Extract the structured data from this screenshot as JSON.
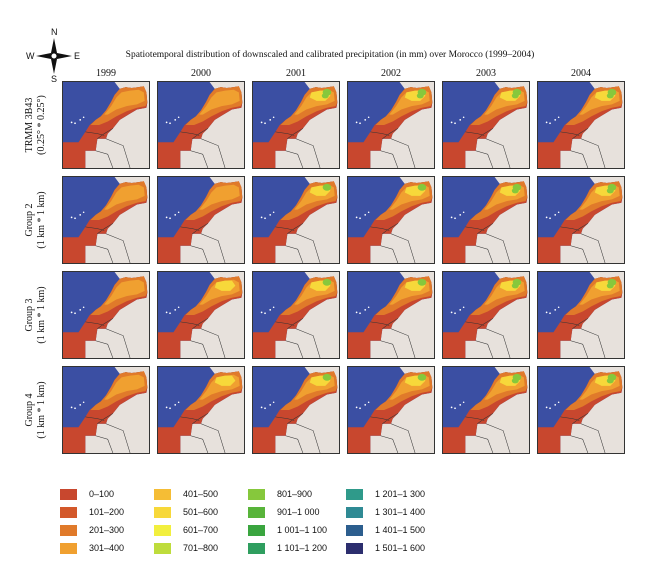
{
  "title": "Spatiotemporal distribution of downscaled and calibrated precipitation (in mm) over Morocco (1999–2004)",
  "compass": {
    "n": "N",
    "s": "S",
    "e": "E",
    "w": "W"
  },
  "years": [
    "1999",
    "2000",
    "2001",
    "2002",
    "2003",
    "2004"
  ],
  "rows": [
    {
      "line1": "TRMM 3B43",
      "line2": "(0.25° * 0.25°)"
    },
    {
      "line1": "Group 2",
      "line2": "(1 km * 1 km)"
    },
    {
      "line1": "Group 3",
      "line2": "(1 km * 1 km)"
    },
    {
      "line1": "Group 4",
      "line2": "(1 km * 1 km)"
    }
  ],
  "legend": [
    {
      "label": "0–100",
      "color": "#c8472e"
    },
    {
      "label": "101–200",
      "color": "#d3582a"
    },
    {
      "label": "201–300",
      "color": "#e07a2a"
    },
    {
      "label": "301–400",
      "color": "#f0a030"
    },
    {
      "label": "401–500",
      "color": "#f5bd35"
    },
    {
      "label": "501–600",
      "color": "#f7d83a"
    },
    {
      "label": "601–700",
      "color": "#f2ef3e"
    },
    {
      "label": "701–800",
      "color": "#bedc3c"
    },
    {
      "label": "801–900",
      "color": "#86c83c"
    },
    {
      "label": "901–1 000",
      "color": "#58b43a"
    },
    {
      "label": "1 001–1 100",
      "color": "#3aa53f"
    },
    {
      "label": "1 101–1 200",
      "color": "#2f9e5f"
    },
    {
      "label": "1 201–1 300",
      "color": "#2f9a8a"
    },
    {
      "label": "1 301–1 400",
      "color": "#2f8a94"
    },
    {
      "label": "1 401–1 500",
      "color": "#2c5e8e"
    },
    {
      "label": "1 501–1 600",
      "color": "#2c2e6e"
    }
  ],
  "colors": {
    "sea": "#3b4fa3",
    "land": "#e7e1dc",
    "base": "#c8472e",
    "mid": "#e07a2a",
    "high": "#f0a030",
    "wet": "#f7d83a",
    "green": "#86c83c"
  }
}
